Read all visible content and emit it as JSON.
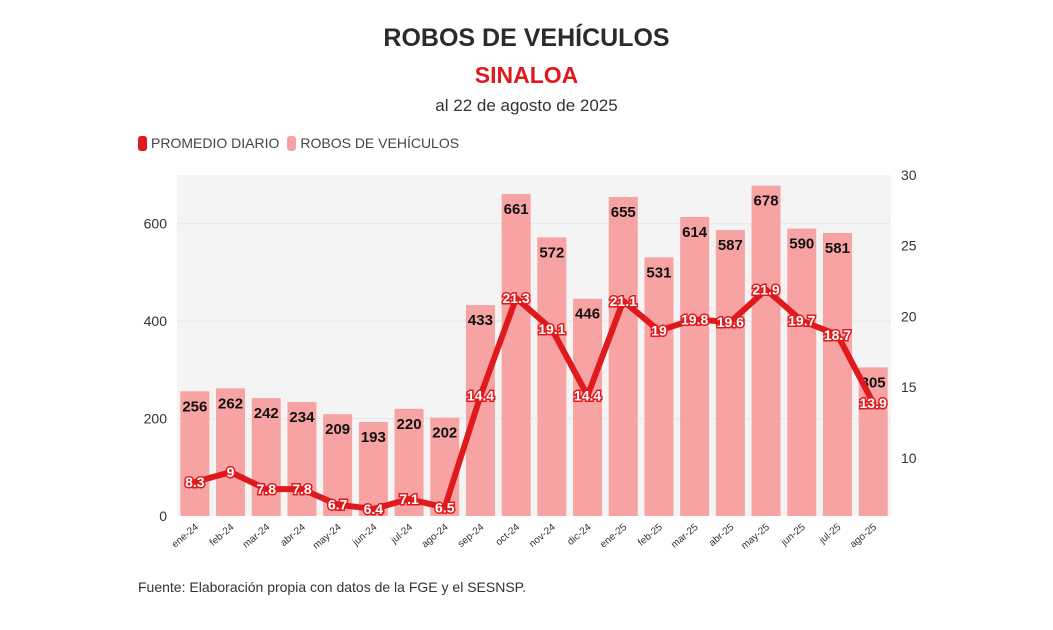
{
  "header": {
    "title": "ROBOS DE VEHÍCULOS",
    "subtitle": "SINALOA",
    "dateline": "al 22 de agosto de 2025"
  },
  "legend": {
    "line_label": "PROMEDIO DIARIO",
    "bar_label": "ROBOS DE VEHÍCULOS"
  },
  "footer": {
    "source": "Fuente: Elaboración propia con datos de la FGE y el SESNSP."
  },
  "colors": {
    "line": "#e0191c",
    "bar": "#f7a3a3",
    "plot_bg": "#f4f4f4",
    "title": "#2b2b2b",
    "subtitle": "#e0191c"
  },
  "chart_data": {
    "type": "bar",
    "categories": [
      "ene-24",
      "feb-24",
      "mar-24",
      "abr-24",
      "may-24",
      "jun-24",
      "jul-24",
      "ago-24",
      "sep-24",
      "oct-24",
      "nov-24",
      "dic-24",
      "ene-25",
      "feb-25",
      "mar-25",
      "abr-25",
      "may-25",
      "jun-25",
      "jul-25",
      "ago-25"
    ],
    "series": [
      {
        "name": "ROBOS DE VEHÍCULOS",
        "type": "bar",
        "axis": "left",
        "values": [
          256,
          262,
          242,
          234,
          209,
          193,
          220,
          202,
          433,
          661,
          572,
          446,
          655,
          531,
          614,
          587,
          678,
          590,
          581,
          305
        ]
      },
      {
        "name": "PROMEDIO DIARIO",
        "type": "line",
        "axis": "right",
        "values": [
          8.3,
          9,
          7.8,
          7.8,
          6.7,
          6.4,
          7.1,
          6.5,
          14.4,
          21.3,
          19.1,
          14.4,
          21.1,
          19,
          19.8,
          19.6,
          21.9,
          19.7,
          18.7,
          13.9
        ]
      }
    ],
    "ylim_left": [
      0,
      700
    ],
    "yticks_left": [
      0,
      200,
      400,
      600
    ],
    "ylim_right": [
      5.9,
      30
    ],
    "yticks_right": [
      10,
      15,
      20,
      25,
      30
    ],
    "grid": true,
    "legend_position": "top-left"
  }
}
